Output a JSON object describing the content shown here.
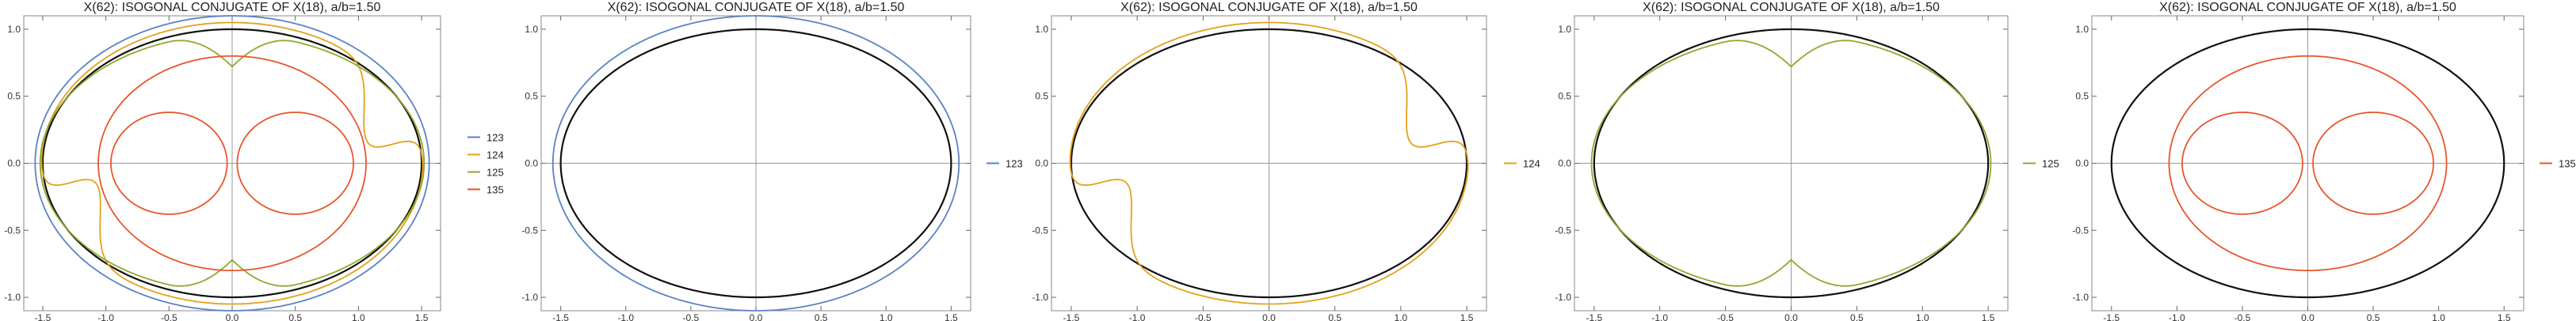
{
  "chart_data": [
    {
      "type": "line",
      "title": "X(62): ISOGONAL CONJUGATE OF X(18), a/b=1.50",
      "xlim": [
        -1.65,
        1.65
      ],
      "ylim": [
        -1.1,
        1.1
      ],
      "xticks": [
        -1.5,
        -1.0,
        -0.5,
        0.0,
        0.5,
        1.0,
        1.5
      ],
      "yticks": [
        -1.0,
        -0.5,
        0.0,
        0.5,
        1.0
      ],
      "xtick_labels": [
        "-1.5",
        "-1.0",
        "-0.5",
        "0.0",
        "0.5",
        "1.0",
        "1.5"
      ],
      "ytick_labels": [
        "-1.0",
        "-0.5",
        "0.0",
        "0.5",
        "1.0"
      ],
      "series": [
        {
          "name": "123",
          "color": "#5b82c4"
        },
        {
          "name": "124",
          "color": "#e4a11b"
        },
        {
          "name": "125",
          "color": "#8fa92d"
        },
        {
          "name": "135",
          "color": "#e8552b"
        }
      ]
    },
    {
      "type": "line",
      "title": "X(62): ISOGONAL CONJUGATE OF X(18), a/b=1.50",
      "xlim": [
        -1.65,
        1.65
      ],
      "ylim": [
        -1.1,
        1.1
      ],
      "xticks": [
        -1.5,
        -1.0,
        -0.5,
        0.0,
        0.5,
        1.0,
        1.5
      ],
      "yticks": [
        -1.0,
        -0.5,
        0.0,
        0.5,
        1.0
      ],
      "xtick_labels": [
        "-1.5",
        "-1.0",
        "-0.5",
        "0.0",
        "0.5",
        "1.0",
        "1.5"
      ],
      "ytick_labels": [
        "-1.0",
        "-0.5",
        "0.0",
        "0.5",
        "1.0"
      ],
      "series": [
        {
          "name": "123",
          "color": "#5b82c4"
        }
      ]
    },
    {
      "type": "line",
      "title": "X(62): ISOGONAL CONJUGATE OF X(18), a/b=1.50",
      "xlim": [
        -1.65,
        1.65
      ],
      "ylim": [
        -1.1,
        1.1
      ],
      "xticks": [
        -1.5,
        -1.0,
        -0.5,
        0.0,
        0.5,
        1.0,
        1.5
      ],
      "yticks": [
        -1.0,
        -0.5,
        0.0,
        0.5,
        1.0
      ],
      "xtick_labels": [
        "-1.5",
        "-1.0",
        "-0.5",
        "0.0",
        "0.5",
        "1.0",
        "1.5"
      ],
      "ytick_labels": [
        "-1.0",
        "-0.5",
        "0.0",
        "0.5",
        "1.0"
      ],
      "series": [
        {
          "name": "124",
          "color": "#e4a11b"
        }
      ]
    },
    {
      "type": "line",
      "title": "X(62): ISOGONAL CONJUGATE OF X(18), a/b=1.50",
      "xlim": [
        -1.65,
        1.65
      ],
      "ylim": [
        -1.1,
        1.1
      ],
      "xticks": [
        -1.5,
        -1.0,
        -0.5,
        0.0,
        0.5,
        1.0,
        1.5
      ],
      "yticks": [
        -1.0,
        -0.5,
        0.0,
        0.5,
        1.0
      ],
      "xtick_labels": [
        "-1.5",
        "-1.0",
        "-0.5",
        "0.0",
        "0.5",
        "1.0",
        "1.5"
      ],
      "ytick_labels": [
        "-1.0",
        "-0.5",
        "0.0",
        "0.5",
        "1.0"
      ],
      "series": [
        {
          "name": "125",
          "color": "#8fa92d"
        }
      ]
    },
    {
      "type": "line",
      "title": "X(62): ISOGONAL CONJUGATE OF X(18), a/b=1.50",
      "xlim": [
        -1.65,
        1.65
      ],
      "ylim": [
        -1.1,
        1.1
      ],
      "xticks": [
        -1.5,
        -1.0,
        -0.5,
        0.0,
        0.5,
        1.0,
        1.5
      ],
      "yticks": [
        -1.0,
        -0.5,
        0.0,
        0.5,
        1.0
      ],
      "xtick_labels": [
        "-1.5",
        "-1.0",
        "-0.5",
        "0.0",
        "0.5",
        "1.0",
        "1.5"
      ],
      "ytick_labels": [
        "-1.0",
        "-0.5",
        "0.0",
        "0.5",
        "1.0"
      ],
      "series": [
        {
          "name": "135",
          "color": "#e8552b"
        }
      ]
    }
  ]
}
